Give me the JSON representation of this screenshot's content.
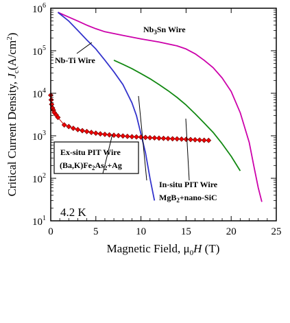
{
  "chart_data": {
    "type": "line",
    "title": "",
    "xlabel": "Magnetic Field, μ₀H (T)",
    "ylabel": "Critical Current Density,  Jc(A/cm²)",
    "xlim": [
      0,
      25
    ],
    "ylim": [
      10,
      1000000
    ],
    "yscale": "log",
    "grid": false,
    "legend": "none",
    "x_ticks": [
      "0",
      "5",
      "10",
      "15",
      "20",
      "25"
    ],
    "y_ticks": [
      {
        "value": 10,
        "base": "10",
        "exp": "1"
      },
      {
        "value": 100,
        "base": "10",
        "exp": "2"
      },
      {
        "value": 1000,
        "base": "10",
        "exp": "3"
      },
      {
        "value": 10000,
        "base": "10",
        "exp": "4"
      },
      {
        "value": 100000,
        "base": "10",
        "exp": "5"
      },
      {
        "value": 1000000,
        "base": "10",
        "exp": "6"
      }
    ],
    "series": [
      {
        "name": "Nb3Sn Wire",
        "color": "#cc00aa",
        "x": [
          0.8,
          2,
          3,
          4,
          5,
          6,
          8,
          10,
          12,
          14,
          15,
          16,
          17,
          18,
          19,
          20,
          21,
          22,
          22.5,
          23,
          23.4
        ],
        "y": [
          800000,
          620000,
          500000,
          400000,
          330000,
          280000,
          230000,
          190000,
          160000,
          130000,
          110000,
          85000,
          60000,
          40000,
          23000,
          11000,
          3500,
          700,
          200,
          60,
          28
        ]
      },
      {
        "name": "Nb-Ti Wire",
        "color": "#3333cc",
        "x": [
          0.8,
          2,
          3,
          4,
          5,
          6,
          7,
          8,
          9,
          9.5,
          10,
          10.5,
          11,
          11.5
        ],
        "y": [
          800000,
          500000,
          300000,
          180000,
          110000,
          60000,
          32000,
          16000,
          6000,
          3000,
          1100,
          400,
          100,
          30
        ]
      },
      {
        "name": "In-situ PIT Wire MgB2+nano-SiC",
        "color": "#118811",
        "x": [
          7,
          8,
          9,
          10,
          11,
          12,
          13,
          14,
          15,
          16,
          17,
          18,
          19,
          20,
          21
        ],
        "y": [
          60000,
          48000,
          38000,
          29000,
          22000,
          16000,
          11500,
          8000,
          5300,
          3300,
          2000,
          1200,
          650,
          330,
          150
        ]
      },
      {
        "name": "Ex-situ PIT Wire (Ba,K)Fe2As2+Ag",
        "color": "#cc0000",
        "x": [
          0,
          0.05,
          0.1,
          0.2,
          0.3,
          0.4,
          0.6,
          0.8,
          1.5,
          2,
          2.5,
          3,
          3.5,
          4,
          4.5,
          5,
          5.5,
          6,
          6.5,
          7,
          7.5,
          8,
          8.5,
          9,
          9.5,
          10,
          10.5,
          11,
          11.5,
          12,
          12.5,
          13,
          13.5,
          14,
          14.5,
          15,
          15.5,
          16,
          16.5,
          17,
          17.5
        ],
        "y": [
          9000,
          7000,
          5500,
          4500,
          4000,
          3500,
          3100,
          2700,
          1800,
          1650,
          1500,
          1400,
          1320,
          1260,
          1200,
          1150,
          1110,
          1080,
          1050,
          1030,
          1010,
          990,
          970,
          950,
          940,
          930,
          915,
          900,
          890,
          880,
          870,
          860,
          850,
          845,
          835,
          825,
          815,
          805,
          795,
          785,
          780
        ]
      }
    ],
    "annotations": {
      "nb3sn": "Nb₃Sn Wire",
      "nbti": "Nb-Ti Wire",
      "exsitu_line1": "Ex-situ PIT Wire",
      "exsitu_line2": "(Ba,K)Fe₂As₂+Ag",
      "insitu_line1": "In-situ PIT Wire",
      "insitu_line2": "MgB₂+nano-SiC",
      "temperature": "4.2 K"
    }
  }
}
